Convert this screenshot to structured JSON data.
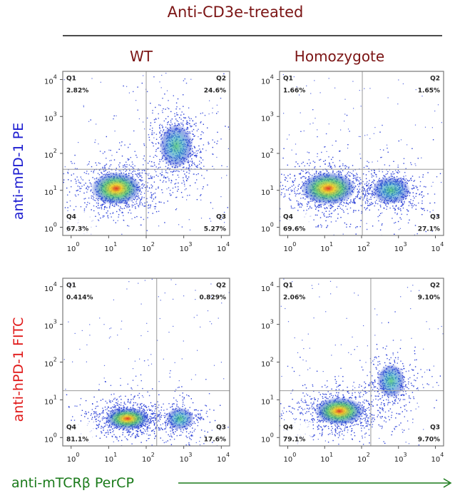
{
  "title": "Anti-CD3e-treated",
  "columns": [
    "WT",
    "Homozygote"
  ],
  "rows": [
    "anti-mPD-1 PE",
    "anti-hPD-1 FITC"
  ],
  "x_axis_label": "anti-mTCRβ PerCP",
  "tick_base": "10",
  "tick_exponents": [
    "0",
    "1",
    "2",
    "3",
    "4"
  ],
  "panels": [
    {
      "quadrants": [
        {
          "name": "Q1",
          "percent": "2.82%"
        },
        {
          "name": "Q2",
          "percent": "24.6%"
        },
        {
          "name": "Q3",
          "percent": "5.27%"
        },
        {
          "name": "Q4",
          "percent": "67.3%"
        }
      ]
    },
    {
      "quadrants": [
        {
          "name": "Q1",
          "percent": "1.66%"
        },
        {
          "name": "Q2",
          "percent": "1.65%"
        },
        {
          "name": "Q3",
          "percent": "27.1%"
        },
        {
          "name": "Q4",
          "percent": "69.6%"
        }
      ]
    },
    {
      "quadrants": [
        {
          "name": "Q1",
          "percent": "0.414%"
        },
        {
          "name": "Q2",
          "percent": "0.829%"
        },
        {
          "name": "Q3",
          "percent": "17.6%"
        },
        {
          "name": "Q4",
          "percent": "81.1%"
        }
      ]
    },
    {
      "quadrants": [
        {
          "name": "Q1",
          "percent": "2.06%"
        },
        {
          "name": "Q2",
          "percent": "9.10%"
        },
        {
          "name": "Q3",
          "percent": "9.70%"
        },
        {
          "name": "Q4",
          "percent": "79.1%"
        }
      ]
    }
  ]
}
